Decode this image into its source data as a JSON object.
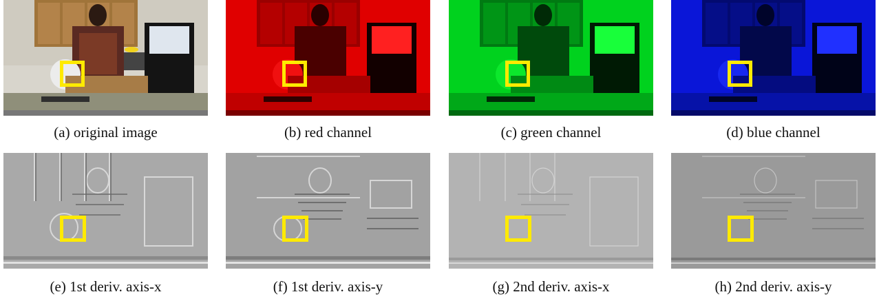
{
  "highlight_color": "#ffea00",
  "rows": [
    [
      {
        "id": "a",
        "caption": "(a) original image",
        "kind": "original",
        "tint": "#d9d6cc"
      },
      {
        "id": "b",
        "caption": "(b) red channel",
        "kind": "channel",
        "tint": "#e00000"
      },
      {
        "id": "c",
        "caption": "(c) green channel",
        "kind": "channel",
        "tint": "#00d21e"
      },
      {
        "id": "d",
        "caption": "(d) blue channel",
        "kind": "channel",
        "tint": "#0a16d8"
      }
    ],
    [
      {
        "id": "e",
        "caption": "(e) 1st deriv. axis-x",
        "kind": "derivative",
        "tint": "#a9a9a9"
      },
      {
        "id": "f",
        "caption": "(f) 1st deriv. axis-y",
        "kind": "derivative",
        "tint": "#a2a2a2"
      },
      {
        "id": "g",
        "caption": "(g) 2nd deriv. axis-x",
        "kind": "derivative",
        "tint": "#b3b3b3"
      },
      {
        "id": "h",
        "caption": "(h) 2nd deriv. axis-y",
        "kind": "derivative",
        "tint": "#9a9a9a"
      }
    ]
  ]
}
